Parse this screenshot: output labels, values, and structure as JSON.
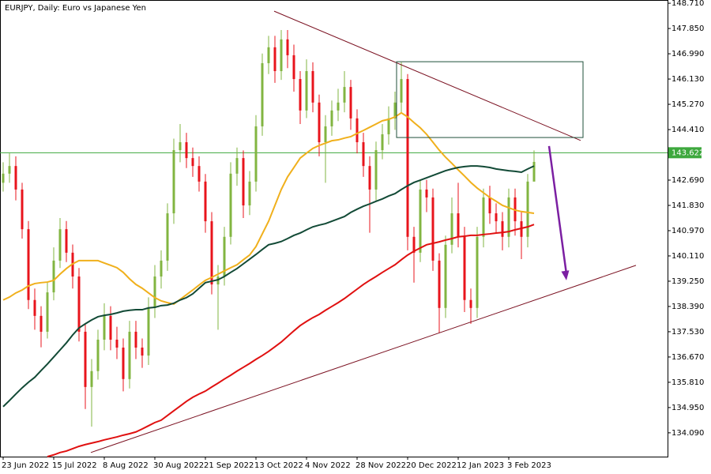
{
  "chart_data": {
    "type": "candlestick",
    "title": "EURJPY, Daily:  Euro vs Japanese Yen",
    "categories": [
      "23 Jun 2022",
      null,
      null,
      null,
      null,
      null,
      null,
      null,
      "15 Jul 2022",
      null,
      null,
      null,
      null,
      null,
      null,
      null,
      "8 Aug 2022",
      null,
      null,
      null,
      null,
      null,
      null,
      null,
      "30 Aug 2022",
      null,
      null,
      null,
      null,
      null,
      null,
      null,
      "21 Sep 2022",
      null,
      null,
      null,
      null,
      null,
      null,
      null,
      "13 Oct 2022",
      null,
      null,
      null,
      null,
      null,
      null,
      null,
      "4 Nov 2022",
      null,
      null,
      null,
      null,
      null,
      null,
      null,
      "28 Nov 2022",
      null,
      null,
      null,
      null,
      null,
      null,
      null,
      "20 Dec 2022",
      null,
      null,
      null,
      null,
      null,
      null,
      null,
      "12 Jan 2023",
      null,
      null,
      null,
      null,
      null,
      null,
      null,
      "3 Feb 2023",
      null,
      null,
      null,
      null
    ],
    "candles": {
      "open": [
        142.6,
        142.91,
        143.17,
        142.37,
        141.02,
        138.61,
        138.07,
        137.53,
        138.87,
        139.95,
        141.02,
        140.22,
        139.41,
        137.53,
        135.65,
        136.19,
        137.26,
        138.07,
        137.26,
        136.99,
        135.92,
        137.53,
        136.99,
        136.72,
        138.34,
        139.41,
        139.95,
        141.56,
        143.71,
        143.98,
        143.44,
        143.17,
        142.64,
        141.29,
        139.14,
        139.41,
        140.76,
        142.91,
        143.44,
        141.83,
        142.64,
        144.52,
        146.67,
        147.21,
        146.4,
        147.48,
        146.94,
        146.13,
        145.06,
        146.4,
        145.33,
        143.98,
        144.52,
        145.06,
        145.33,
        145.86,
        144.79,
        143.98,
        143.17,
        142.37,
        143.71,
        144.25,
        144.79,
        145.33,
        146.13,
        140.76,
        140.22,
        142.37,
        142.1,
        139.95,
        138.34,
        140.49,
        141.56,
        140.76,
        138.61,
        138.34,
        140.76,
        142.1,
        141.56,
        141.29,
        140.76,
        142.1,
        141.29,
        140.76,
        142.64
      ],
      "high": [
        143.3,
        143.6,
        143.5,
        142.6,
        141.3,
        139.0,
        138.4,
        139.2,
        140.4,
        141.4,
        141.3,
        140.5,
        139.7,
        137.8,
        136.6,
        137.6,
        138.5,
        138.4,
        137.7,
        137.3,
        137.9,
        137.9,
        137.3,
        138.7,
        139.8,
        140.3,
        141.9,
        144.1,
        144.6,
        144.3,
        143.8,
        143.5,
        142.9,
        141.6,
        139.8,
        141.1,
        143.3,
        143.8,
        143.7,
        143.0,
        144.9,
        147.0,
        147.6,
        147.6,
        147.8,
        147.8,
        147.3,
        146.4,
        146.8,
        146.7,
        145.6,
        144.9,
        145.4,
        145.8,
        146.4,
        146.1,
        145.1,
        144.3,
        143.5,
        144.0,
        144.6,
        145.2,
        145.7,
        146.7,
        146.3,
        141.1,
        142.7,
        142.7,
        142.4,
        140.2,
        140.8,
        142.1,
        142.6,
        141.1,
        139.0,
        141.1,
        142.4,
        142.5,
        141.9,
        141.6,
        142.4,
        142.4,
        141.6,
        142.9,
        143.7
      ],
      "low": [
        142.3,
        142.6,
        142.0,
        140.7,
        138.3,
        137.6,
        137.0,
        137.3,
        138.6,
        139.7,
        139.9,
        139.0,
        137.2,
        134.9,
        134.3,
        135.9,
        136.9,
        136.9,
        136.6,
        135.5,
        135.6,
        136.6,
        136.3,
        136.4,
        138.0,
        139.0,
        139.6,
        141.2,
        143.3,
        143.1,
        142.8,
        142.3,
        140.9,
        138.8,
        137.6,
        139.1,
        140.5,
        142.5,
        141.4,
        141.5,
        142.3,
        144.2,
        146.3,
        146.0,
        146.1,
        146.5,
        145.7,
        144.6,
        144.8,
        145.0,
        143.5,
        142.6,
        144.2,
        144.7,
        145.0,
        144.4,
        143.6,
        142.8,
        140.9,
        142.0,
        143.4,
        143.9,
        144.4,
        145.0,
        140.3,
        139.2,
        139.9,
        141.6,
        139.6,
        137.5,
        138.0,
        140.2,
        140.4,
        138.2,
        137.8,
        138.0,
        140.4,
        141.2,
        140.9,
        140.3,
        140.4,
        140.8,
        140.0,
        140.4,
        142.9
      ],
      "close": [
        142.91,
        143.17,
        142.37,
        141.02,
        138.61,
        138.07,
        137.53,
        138.87,
        139.95,
        141.02,
        140.22,
        139.41,
        137.53,
        135.65,
        136.19,
        137.26,
        138.07,
        137.26,
        136.99,
        135.92,
        137.53,
        136.99,
        136.72,
        138.34,
        139.41,
        139.95,
        141.56,
        143.71,
        143.98,
        143.44,
        143.17,
        142.64,
        141.29,
        139.14,
        139.41,
        140.76,
        142.91,
        143.44,
        141.83,
        142.64,
        144.52,
        146.67,
        147.21,
        146.4,
        147.48,
        146.94,
        146.13,
        145.06,
        146.4,
        145.33,
        143.98,
        144.52,
        145.06,
        145.33,
        145.86,
        144.79,
        143.98,
        143.17,
        142.37,
        143.71,
        144.25,
        144.79,
        145.33,
        146.13,
        140.76,
        140.22,
        142.37,
        142.1,
        139.95,
        138.34,
        140.49,
        141.56,
        140.76,
        138.61,
        138.34,
        140.76,
        142.1,
        141.56,
        141.29,
        140.76,
        142.1,
        141.29,
        140.76,
        142.64,
        143.31
      ],
      "up_color": "#82b541",
      "down_color": "#e8141c"
    },
    "lines": [
      {
        "color": "#f0b01c",
        "values": [
          138.61,
          138.71,
          138.85,
          138.95,
          139.09,
          139.17,
          139.2,
          139.22,
          139.28,
          139.49,
          139.68,
          139.84,
          139.95,
          139.95,
          139.95,
          139.95,
          139.87,
          139.79,
          139.71,
          139.55,
          139.33,
          139.14,
          139.01,
          138.85,
          138.69,
          138.58,
          138.52,
          138.47,
          138.63,
          138.79,
          138.95,
          139.12,
          139.28,
          139.38,
          139.49,
          139.6,
          139.71,
          139.81,
          139.98,
          140.14,
          140.43,
          140.86,
          141.29,
          141.83,
          142.37,
          142.8,
          143.12,
          143.44,
          143.61,
          143.77,
          143.87,
          143.95,
          144.03,
          144.06,
          144.12,
          144.17,
          144.28,
          144.38,
          144.49,
          144.6,
          144.71,
          144.76,
          144.84,
          144.98,
          144.84,
          144.65,
          144.47,
          144.25,
          143.98,
          143.71,
          143.47,
          143.26,
          143.04,
          142.83,
          142.61,
          142.42,
          142.26,
          142.1,
          141.97,
          141.83,
          141.75,
          141.67,
          141.62,
          141.59,
          141.56
        ]
      },
      {
        "color": "#124a36",
        "values": [
          134.98,
          135.19,
          135.41,
          135.62,
          135.81,
          135.98,
          136.21,
          136.43,
          136.67,
          136.91,
          137.15,
          137.42,
          137.66,
          137.8,
          137.93,
          138.04,
          138.09,
          138.12,
          138.17,
          138.23,
          138.26,
          138.28,
          138.28,
          138.34,
          138.36,
          138.42,
          138.44,
          138.5,
          138.61,
          138.69,
          138.82,
          139.01,
          139.2,
          139.25,
          139.3,
          139.41,
          139.55,
          139.68,
          139.84,
          140.0,
          140.16,
          140.33,
          140.49,
          140.54,
          140.6,
          140.7,
          140.81,
          140.89,
          141.0,
          141.1,
          141.16,
          141.21,
          141.29,
          141.37,
          141.45,
          141.59,
          141.7,
          141.8,
          141.88,
          141.97,
          142.05,
          142.15,
          142.23,
          142.37,
          142.5,
          142.61,
          142.69,
          142.77,
          142.85,
          142.93,
          143.01,
          143.07,
          143.12,
          143.15,
          143.17,
          143.17,
          143.15,
          143.12,
          143.07,
          143.04,
          143.01,
          142.99,
          142.96,
          143.07,
          143.17
        ]
      },
      {
        "color": "#e01010",
        "values": [
          null,
          null,
          null,
          null,
          null,
          null,
          null,
          133.28,
          133.34,
          133.42,
          133.47,
          133.55,
          133.63,
          133.69,
          133.74,
          133.79,
          133.85,
          133.9,
          133.95,
          134.01,
          134.06,
          134.12,
          134.22,
          134.33,
          134.44,
          134.52,
          134.68,
          134.84,
          135.0,
          135.16,
          135.3,
          135.41,
          135.51,
          135.65,
          135.78,
          135.92,
          136.05,
          136.19,
          136.32,
          136.45,
          136.59,
          136.72,
          136.86,
          137.02,
          137.18,
          137.37,
          137.56,
          137.74,
          137.88,
          138.01,
          138.12,
          138.26,
          138.39,
          138.52,
          138.66,
          138.82,
          138.98,
          139.14,
          139.28,
          139.41,
          139.55,
          139.68,
          139.81,
          139.98,
          140.14,
          140.27,
          140.38,
          140.49,
          140.54,
          140.59,
          140.65,
          140.7,
          140.76,
          140.78,
          140.81,
          140.81,
          140.84,
          140.86,
          140.89,
          140.91,
          140.94,
          141.0,
          141.05,
          141.1,
          141.18
        ]
      }
    ],
    "trendlines": [
      {
        "color": "#7a1020",
        "points": [
          [
            42.875,
            148.44
          ],
          [
            91.375,
            144.04
          ]
        ]
      },
      {
        "color": "#7a1020",
        "points": [
          [
            13.875,
            133.42
          ],
          [
            100.125,
            139.79
          ]
        ]
      }
    ],
    "rectangle": {
      "color": "#1f4f3a",
      "points": [
        [
          62.25,
          146.72
        ],
        [
          91.75,
          144.14
        ]
      ]
    },
    "arrow": {
      "color": "#7b1fa2",
      "points": [
        [
          86.375,
          143.85
        ],
        [
          89.125,
          139.28
        ]
      ]
    },
    "current_price": 143.622,
    "current_price_color": "#3da83d",
    "ylim": [
      133.28,
      148.82
    ],
    "yticks": [
      {
        "value": 148.71,
        "label": "148.710"
      },
      {
        "value": 147.85,
        "label": "147.850"
      },
      {
        "value": 146.99,
        "label": "146.990"
      },
      {
        "value": 146.13,
        "label": "146.130"
      },
      {
        "value": 145.27,
        "label": "145.270"
      },
      {
        "value": 144.41,
        "label": "144.410"
      },
      {
        "value": 142.69,
        "label": "142.690"
      },
      {
        "value": 141.83,
        "label": "141.830"
      },
      {
        "value": 140.97,
        "label": "140.970"
      },
      {
        "value": 140.11,
        "label": "140.110"
      },
      {
        "value": 139.25,
        "label": "139.250"
      },
      {
        "value": 138.39,
        "label": "138.390"
      },
      {
        "value": 137.53,
        "label": "137.530"
      },
      {
        "value": 136.67,
        "label": "136.670"
      },
      {
        "value": 135.81,
        "label": "135.810"
      },
      {
        "value": 134.95,
        "label": "134.950"
      },
      {
        "value": 134.09,
        "label": "134.090"
      }
    ]
  }
}
